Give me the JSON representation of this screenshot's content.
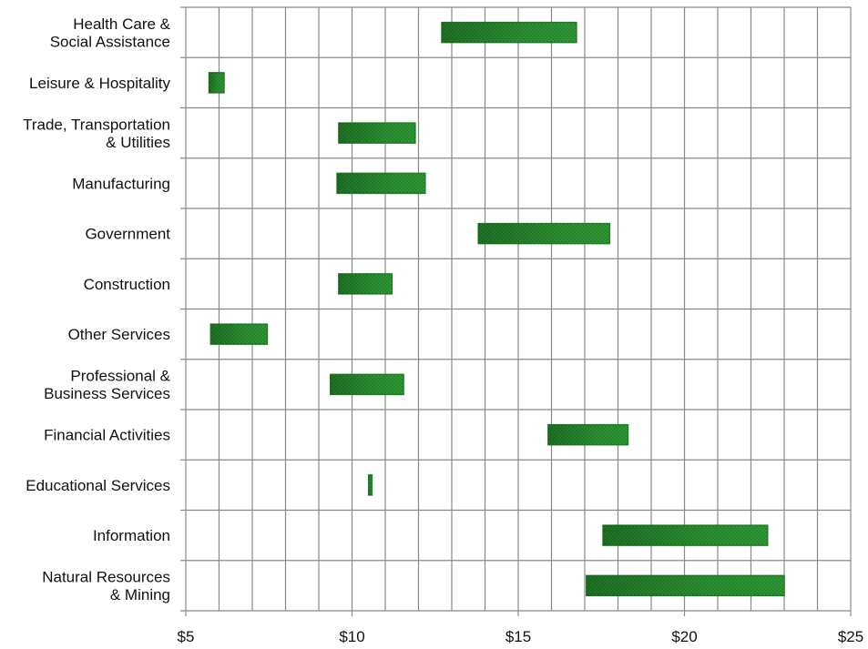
{
  "chart_data": {
    "type": "bar",
    "orientation": "horizontal-range",
    "title": "",
    "xlabel": "",
    "ylabel": "",
    "xlim": [
      5,
      25
    ],
    "x_ticks": [
      5,
      10,
      15,
      20,
      25
    ],
    "x_tick_labels": [
      "$5",
      "$10",
      "$15",
      "$20",
      "$25"
    ],
    "grid": true,
    "categories": [
      [
        "Health Care &",
        "Social Assistance"
      ],
      [
        "Leisure & Hospitality"
      ],
      [
        "Trade, Transportation",
        "& Utilities"
      ],
      [
        "Manufacturing"
      ],
      [
        "Government"
      ],
      [
        "Construction"
      ],
      [
        "Other Services"
      ],
      [
        "Professional &",
        "Business Services"
      ],
      [
        "Financial Activities"
      ],
      [
        "Educational Services"
      ],
      [
        "Information"
      ],
      [
        "Natural Resources",
        "& Mining"
      ]
    ],
    "ranges": [
      [
        12.7,
        16.75
      ],
      [
        5.7,
        6.15
      ],
      [
        9.6,
        11.9
      ],
      [
        9.55,
        12.2
      ],
      [
        13.8,
        17.75
      ],
      [
        9.6,
        11.2
      ],
      [
        5.75,
        7.45
      ],
      [
        9.35,
        11.55
      ],
      [
        15.9,
        18.3
      ],
      [
        10.5,
        10.6
      ],
      [
        17.55,
        22.5
      ],
      [
        17.05,
        23.0
      ]
    ],
    "colors": {
      "bar_fill": "#33a33a",
      "bar_stroke": "#1e7d24",
      "bar_shade": "#1a6620",
      "grid": "#888888"
    }
  }
}
